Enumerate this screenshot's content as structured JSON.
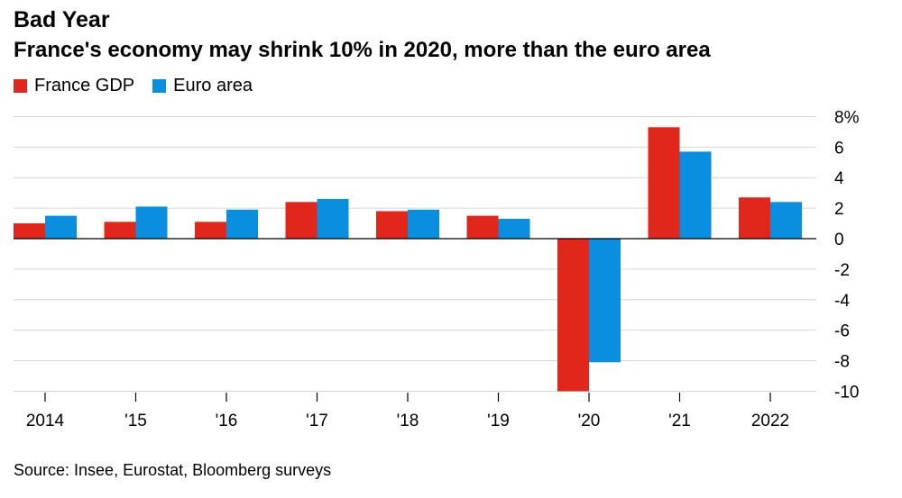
{
  "chart_data": {
    "type": "bar",
    "title": "Bad Year",
    "subtitle": "France's economy may shrink 10% in 2020, more than the euro area",
    "categories": [
      "2014",
      "'15",
      "'16",
      "'17",
      "'18",
      "'19",
      "'20",
      "'21",
      "2022"
    ],
    "series": [
      {
        "name": "France GDP",
        "color": "#e1261c",
        "values": [
          1.0,
          1.1,
          1.1,
          2.4,
          1.8,
          1.5,
          -10.0,
          7.3,
          2.7
        ]
      },
      {
        "name": "Euro area",
        "color": "#0a8ee0",
        "values": [
          1.5,
          2.1,
          1.9,
          2.6,
          1.9,
          1.3,
          -8.1,
          5.7,
          2.4
        ]
      }
    ],
    "y_ticks": [
      "8%",
      "6",
      "4",
      "2",
      "0",
      "-2",
      "-4",
      "-6",
      "-8",
      "-10"
    ],
    "ylim": [
      -10,
      8
    ],
    "xlabel": "",
    "ylabel": "",
    "source": "Source: Insee, Eurostat, Bloomberg surveys"
  }
}
